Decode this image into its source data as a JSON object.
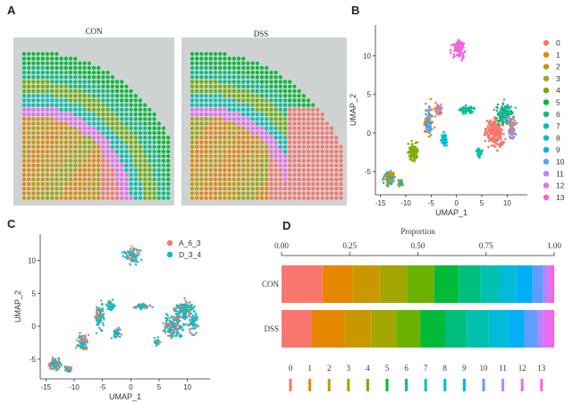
{
  "panels": {
    "A": {
      "letter": "A",
      "titles": [
        "CON",
        "DSS"
      ]
    },
    "B": {
      "letter": "B"
    },
    "C": {
      "letter": "C"
    },
    "D": {
      "letter": "D"
    }
  },
  "chart_data": [
    {
      "panel": "B",
      "type": "scatter",
      "xlabel": "UMAP_1",
      "ylabel": "UMAP_2",
      "xticks": [
        -15,
        -10,
        -5,
        0,
        5,
        10
      ],
      "yticks": [
        -5,
        0,
        5,
        10
      ],
      "xlim": [
        -16,
        14
      ],
      "ylim": [
        -8,
        14
      ],
      "legend_position": "right",
      "series": [
        {
          "name": "0",
          "color": "#F8766D",
          "center": [
            7,
            -1
          ]
        },
        {
          "name": "1",
          "color": "#E58700",
          "center": [
            -4,
            2
          ]
        },
        {
          "name": "2",
          "color": "#C99800",
          "center": [
            -13,
            -6
          ]
        },
        {
          "name": "3",
          "color": "#A3A500",
          "center": [
            -8,
            -3
          ]
        },
        {
          "name": "4",
          "color": "#6BB100",
          "center": [
            -7,
            -2
          ]
        },
        {
          "name": "5",
          "color": "#00BA38",
          "center": [
            9,
            2
          ]
        },
        {
          "name": "6",
          "color": "#00BF7D",
          "center": [
            10,
            3
          ]
        },
        {
          "name": "7",
          "color": "#00C0AF",
          "center": [
            2,
            3
          ]
        },
        {
          "name": "8",
          "color": "#00BCD8",
          "center": [
            -4,
            -1
          ]
        },
        {
          "name": "9",
          "color": "#00B0F6",
          "center": [
            -10,
            -6
          ]
        },
        {
          "name": "10",
          "color": "#619CFF",
          "center": [
            6,
            1
          ]
        },
        {
          "name": "11",
          "color": "#B983FF",
          "center": [
            -2,
            1
          ]
        },
        {
          "name": "12",
          "color": "#E76BF3",
          "center": [
            1,
            12
          ]
        },
        {
          "name": "13",
          "color": "#FD61D1",
          "center": [
            0,
            10
          ]
        }
      ]
    },
    {
      "panel": "C",
      "type": "scatter",
      "xlabel": "UMAP_1",
      "ylabel": "UMAP_2",
      "xticks": [
        -15,
        -10,
        -5,
        0,
        5,
        10
      ],
      "yticks": [
        -5,
        0,
        5,
        10
      ],
      "xlim": [
        -16,
        14
      ],
      "ylim": [
        -8,
        14
      ],
      "legend_position": "top-right",
      "series": [
        {
          "name": "A_6_3",
          "color": "#F8766D"
        },
        {
          "name": "D_3_4",
          "color": "#00BFC4"
        }
      ]
    },
    {
      "panel": "D",
      "type": "bar",
      "orientation": "horizontal",
      "stacked": true,
      "title": "Proportion",
      "xticks": [
        "0.00",
        "0.25",
        "0.50",
        "0.75",
        "1.00"
      ],
      "xlim": [
        0,
        1
      ],
      "categories": [
        "CON",
        "DSS"
      ],
      "series": [
        {
          "name": "0",
          "color": "#F8766D",
          "values": [
            0.15,
            0.11
          ]
        },
        {
          "name": "1",
          "color": "#E58700",
          "values": [
            0.11,
            0.12
          ]
        },
        {
          "name": "2",
          "color": "#C99800",
          "values": [
            0.1,
            0.1
          ]
        },
        {
          "name": "3",
          "color": "#A3A500",
          "values": [
            0.1,
            0.09
          ]
        },
        {
          "name": "4",
          "color": "#6BB100",
          "values": [
            0.1,
            0.09
          ]
        },
        {
          "name": "5",
          "color": "#00BA38",
          "values": [
            0.09,
            0.09
          ]
        },
        {
          "name": "6",
          "color": "#00BF7D",
          "values": [
            0.08,
            0.08
          ]
        },
        {
          "name": "7",
          "color": "#00C0AF",
          "values": [
            0.07,
            0.08
          ]
        },
        {
          "name": "8",
          "color": "#00BCD8",
          "values": [
            0.06,
            0.07
          ]
        },
        {
          "name": "9",
          "color": "#00B0F6",
          "values": [
            0.06,
            0.06
          ]
        },
        {
          "name": "10",
          "color": "#619CFF",
          "values": [
            0.04,
            0.05
          ]
        },
        {
          "name": "11",
          "color": "#B983FF",
          "values": [
            0.02,
            0.02
          ]
        },
        {
          "name": "12",
          "color": "#E76BF3",
          "values": [
            0.01,
            0.03
          ]
        },
        {
          "name": "13",
          "color": "#FD61D1",
          "values": [
            0.01,
            0.01
          ]
        }
      ]
    }
  ]
}
